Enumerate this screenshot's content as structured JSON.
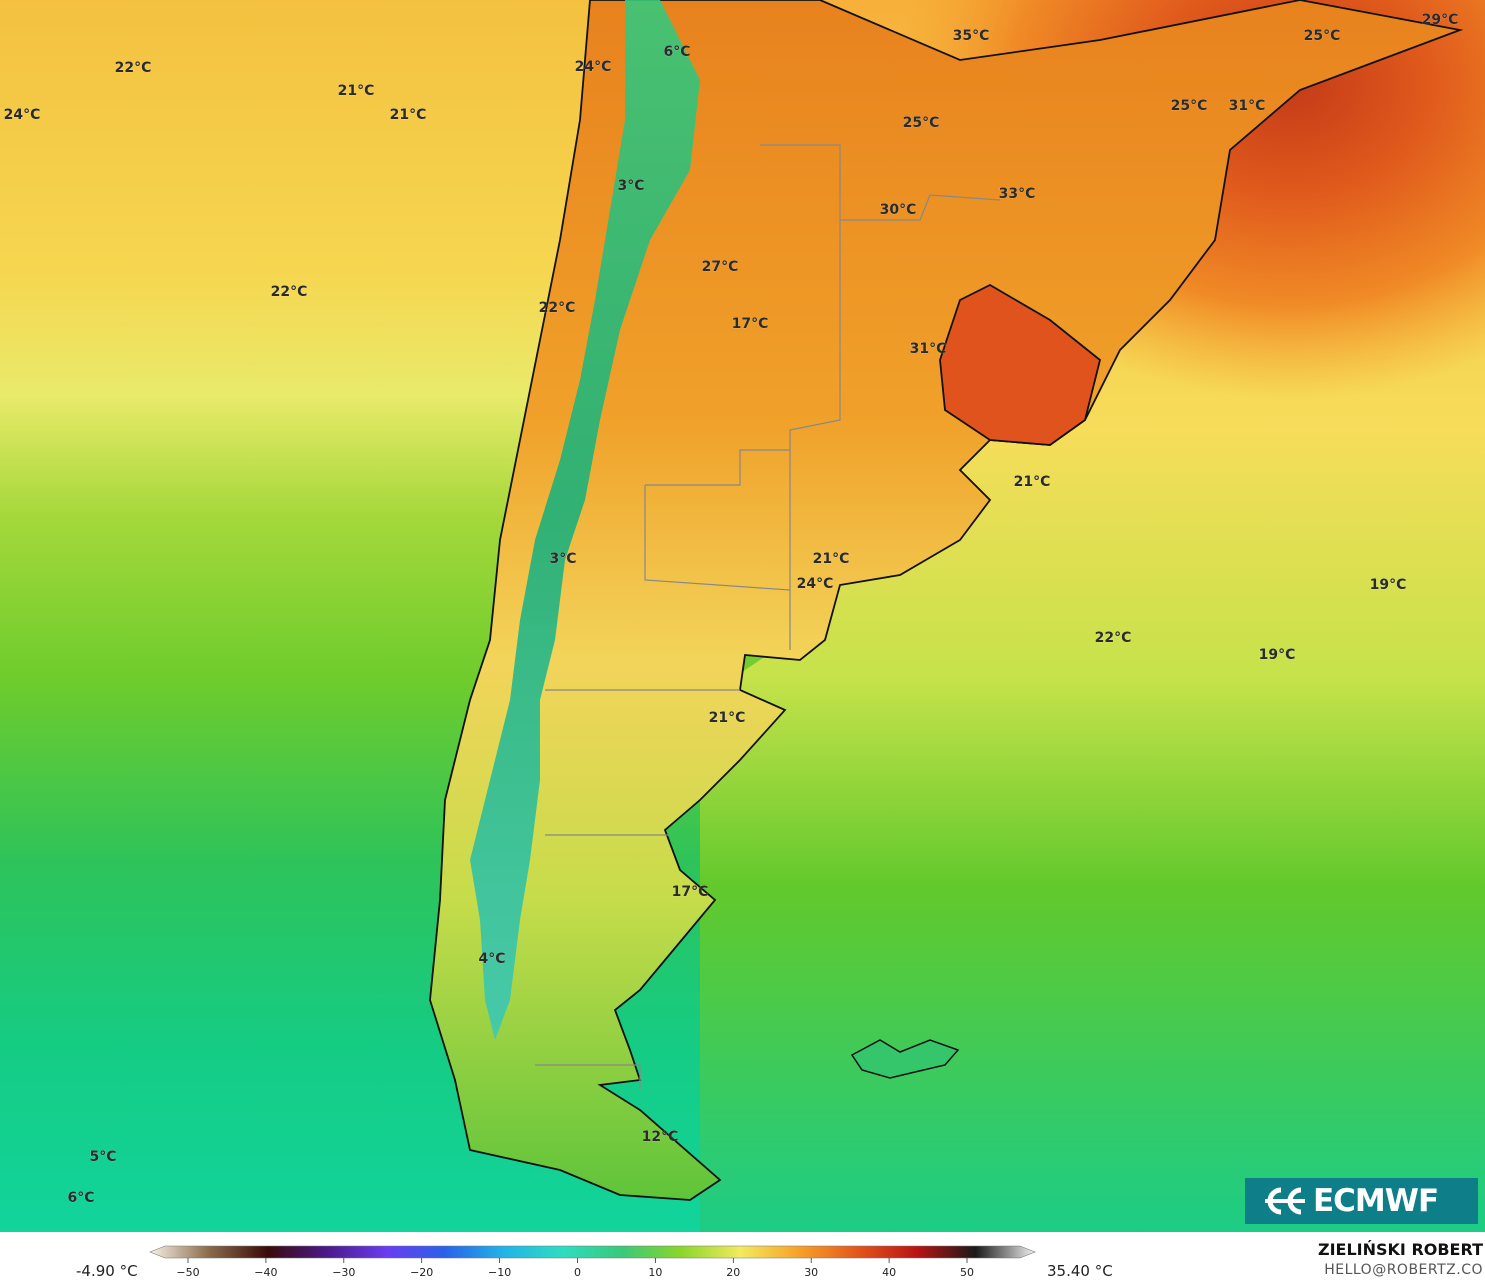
{
  "map": {
    "temperature_labels": [
      "22°C",
      "21°C",
      "21°C",
      "24°C",
      "24°C",
      "6°C",
      "35°C",
      "25°C",
      "29°C",
      "25°C",
      "31°C",
      "25°C",
      "3°C",
      "30°C",
      "33°C",
      "27°C",
      "22°C",
      "22°C",
      "17°C",
      "31°C",
      "21°C",
      "21°C",
      "24°C",
      "3°C",
      "19°C",
      "22°C",
      "19°C",
      "21°C",
      "17°C",
      "4°C",
      "12°C",
      "5°C",
      "6°C"
    ]
  },
  "logo": {
    "text": "ECMWF"
  },
  "legend": {
    "min_label": "-4.90 °C",
    "max_label": "35.40 °C",
    "ticks": [
      "−50",
      "−40",
      "−30",
      "−20",
      "−10",
      "0",
      "10",
      "20",
      "30",
      "40",
      "50"
    ],
    "colors": [
      "#f7f1e6",
      "#8a6a4a",
      "#3a0b0b",
      "#4b1a8a",
      "#6a3cf0",
      "#2a62e8",
      "#22b4e6",
      "#2fdcc0",
      "#3ac87a",
      "#8ad62a",
      "#f2ea60",
      "#f6a22a",
      "#e2561c",
      "#b81414",
      "#1a1a1a",
      "#f0f0f0"
    ]
  },
  "author": {
    "name": "ZIELIŃSKI ROBERT",
    "email": "HELLO@ROBERTZ.CO"
  }
}
